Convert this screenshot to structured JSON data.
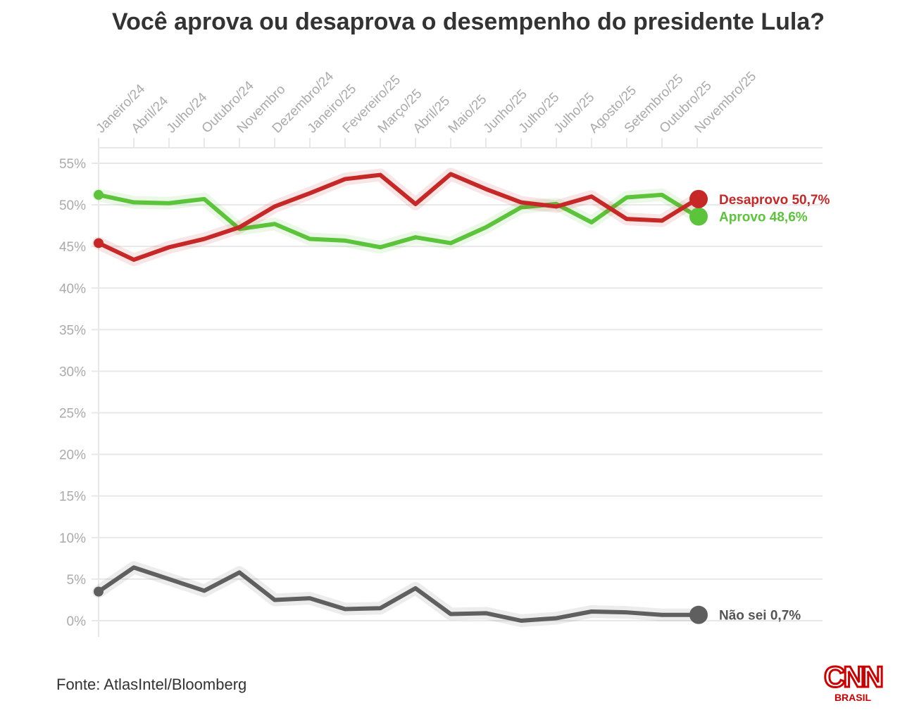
{
  "chart_data": {
    "type": "line",
    "title": "Você aprova ou desaprova o desempenho do presidente Lula?",
    "categories": [
      "Janeiro/24",
      "Abril/24",
      "Julho/24",
      "Outubro/24",
      "Novembro",
      "Dezembro/24",
      "Janeiro/25",
      "Fevereiro/25",
      "Março/25",
      "Abril/25",
      "Maio/25",
      "Junho/25",
      "Julho/25",
      "Julho/25",
      "Agosto/25",
      "Setembro/25",
      "Outubro/25",
      "Novembro/25"
    ],
    "ylim": [
      0,
      55
    ],
    "yticks": [
      "0%",
      "5%",
      "10%",
      "15%",
      "20%",
      "25%",
      "30%",
      "35%",
      "40%",
      "45%",
      "50%",
      "55%"
    ],
    "grid": true,
    "series": [
      {
        "name": "Desaprovo",
        "label": "Desaprovo 50,7%",
        "color": "#c62828",
        "values": [
          45.4,
          43.4,
          44.9,
          45.9,
          47.3,
          49.8,
          51.4,
          53.1,
          53.6,
          50.1,
          53.7,
          51.9,
          50.3,
          49.8,
          51.0,
          48.3,
          48.1,
          50.7
        ]
      },
      {
        "name": "Aprovo",
        "label": "Aprovo 48,6%",
        "color": "#5cc43a",
        "values": [
          51.2,
          50.3,
          50.2,
          50.7,
          47.1,
          47.7,
          45.9,
          45.7,
          44.9,
          46.1,
          45.4,
          47.3,
          49.7,
          50.1,
          47.9,
          50.9,
          51.2,
          48.6
        ]
      },
      {
        "name": "Não sei",
        "label": "Não sei 0,7%",
        "color": "#5f5f5f",
        "values": [
          3.5,
          6.4,
          5.0,
          3.6,
          5.8,
          2.5,
          2.7,
          1.4,
          1.5,
          3.9,
          0.8,
          0.9,
          0.0,
          0.3,
          1.1,
          1.0,
          0.7,
          0.7
        ]
      }
    ]
  },
  "source": "Fonte: AtlasIntel/Bloomberg",
  "logo": {
    "text": "CNN",
    "sub": "BRASIL",
    "color": "#cc0000"
  }
}
